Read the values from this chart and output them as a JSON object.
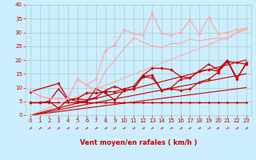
{
  "background_color": "#cceeff",
  "grid_color": "#aacccc",
  "xlabel": "Vent moyen/en rafales ( km/h )",
  "xlabel_color": "#cc0000",
  "xlim": [
    -0.5,
    23.5
  ],
  "ylim": [
    0,
    40
  ],
  "yticks": [
    0,
    5,
    10,
    15,
    20,
    25,
    30,
    35,
    40
  ],
  "xticks": [
    0,
    1,
    2,
    3,
    4,
    5,
    6,
    7,
    8,
    9,
    10,
    11,
    12,
    13,
    14,
    15,
    16,
    17,
    18,
    19,
    20,
    21,
    22,
    23
  ],
  "tick_color": "#cc0000",
  "tick_fontsize": 5.0,
  "lines": [
    {
      "x": [
        0,
        1,
        2,
        3,
        4,
        5,
        6,
        7,
        8,
        9,
        10,
        11,
        12,
        13,
        14,
        15,
        16,
        17,
        18,
        19,
        20,
        21,
        22,
        23
      ],
      "y": [
        4.5,
        4.5,
        4.5,
        4.5,
        4.5,
        4.5,
        4.5,
        4.5,
        4.5,
        4.5,
        4.5,
        4.5,
        4.5,
        4.5,
        4.5,
        4.5,
        4.5,
        4.5,
        4.5,
        4.5,
        4.5,
        4.5,
        4.5,
        4.5
      ],
      "color": "#cc0000",
      "lw": 0.8,
      "marker": "D",
      "ms": 1.5,
      "alpha": 1.0
    },
    {
      "x": [
        0,
        23
      ],
      "y": [
        0,
        10.0
      ],
      "color": "#cc0000",
      "lw": 0.8,
      "marker": null,
      "ms": 0,
      "alpha": 1.0
    },
    {
      "x": [
        0,
        23
      ],
      "y": [
        0,
        15.0
      ],
      "color": "#cc0000",
      "lw": 0.8,
      "marker": null,
      "ms": 0,
      "alpha": 1.0
    },
    {
      "x": [
        0,
        23
      ],
      "y": [
        0,
        20.0
      ],
      "color": "#cc0000",
      "lw": 0.8,
      "marker": null,
      "ms": 0,
      "alpha": 1.0
    },
    {
      "x": [
        0,
        23
      ],
      "y": [
        0,
        31.0
      ],
      "color": "#ffaaaa",
      "lw": 0.8,
      "marker": null,
      "ms": 0,
      "alpha": 1.0
    },
    {
      "x": [
        0,
        1,
        2,
        3,
        4,
        5,
        6,
        7,
        8,
        9,
        10,
        11,
        12,
        13,
        14,
        15,
        16,
        17,
        18,
        19,
        20,
        21,
        22,
        23
      ],
      "y": [
        4.5,
        4.5,
        5.0,
        2.5,
        5.5,
        6.0,
        8.0,
        8.0,
        8.5,
        8.5,
        9.5,
        10.5,
        14.5,
        17.0,
        17.0,
        16.5,
        14.0,
        13.5,
        16.0,
        16.5,
        16.0,
        19.5,
        19.0,
        18.5
      ],
      "color": "#cc0000",
      "lw": 0.9,
      "marker": "D",
      "ms": 1.8,
      "alpha": 1.0
    },
    {
      "x": [
        0,
        1,
        2,
        3,
        4,
        5,
        6,
        7,
        8,
        9,
        10,
        11,
        12,
        13,
        14,
        15,
        16,
        17,
        18,
        19,
        20,
        21,
        22,
        23
      ],
      "y": [
        4.5,
        4.5,
        5.0,
        9.5,
        5.5,
        6.0,
        5.5,
        6.5,
        9.0,
        10.5,
        9.0,
        9.5,
        14.0,
        13.5,
        9.0,
        10.0,
        13.0,
        13.5,
        16.0,
        18.5,
        16.5,
        20.0,
        13.5,
        18.5
      ],
      "color": "#cc0000",
      "lw": 0.9,
      "marker": "^",
      "ms": 2.0,
      "alpha": 1.0
    },
    {
      "x": [
        0,
        3,
        4,
        5,
        6,
        7,
        8,
        9,
        10,
        11,
        12,
        13,
        14,
        15,
        16,
        17,
        18,
        19,
        20,
        21,
        22,
        23
      ],
      "y": [
        8.5,
        11.5,
        6.0,
        5.0,
        5.0,
        9.5,
        8.0,
        5.5,
        9.0,
        9.5,
        14.0,
        14.5,
        9.0,
        9.5,
        9.0,
        9.5,
        12.0,
        13.0,
        15.5,
        19.5,
        13.0,
        19.0
      ],
      "color": "#cc0000",
      "lw": 0.9,
      "marker": "D",
      "ms": 1.8,
      "alpha": 1.0
    },
    {
      "x": [
        0,
        1,
        2,
        3,
        4,
        5,
        6,
        7,
        8,
        9,
        10,
        11,
        12,
        13,
        14,
        15,
        16,
        17,
        18,
        19,
        20,
        21,
        22,
        23
      ],
      "y": [
        9.0,
        7.0,
        6.0,
        6.0,
        6.0,
        13.0,
        11.0,
        13.0,
        23.5,
        25.5,
        31.0,
        29.5,
        29.0,
        37.0,
        29.5,
        29.0,
        30.0,
        34.5,
        29.5,
        35.5,
        29.5,
        30.0,
        31.0,
        31.5
      ],
      "color": "#ffaaaa",
      "lw": 0.9,
      "marker": "D",
      "ms": 1.8,
      "alpha": 1.0
    },
    {
      "x": [
        0,
        1,
        2,
        3,
        4,
        5,
        6,
        7,
        8,
        9,
        10,
        11,
        12,
        13,
        14,
        15,
        16,
        17,
        18,
        19,
        20,
        21,
        22,
        23
      ],
      "y": [
        9.0,
        7.0,
        6.0,
        6.0,
        6.0,
        13.0,
        11.0,
        9.0,
        16.0,
        20.0,
        24.0,
        28.0,
        26.5,
        25.0,
        24.5,
        26.0,
        26.0,
        27.5,
        27.0,
        27.5,
        28.0,
        27.5,
        30.0,
        31.5
      ],
      "color": "#ffaaaa",
      "lw": 0.9,
      "marker": null,
      "ms": 0,
      "alpha": 1.0
    }
  ]
}
